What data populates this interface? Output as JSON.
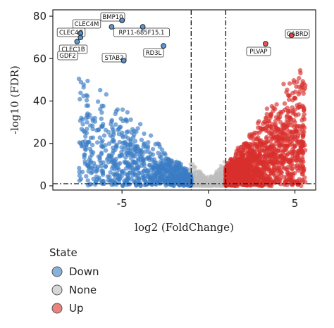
{
  "chart_data": {
    "type": "scatter",
    "title": "",
    "xlabel": "log2 (FoldChange)",
    "ylabel": "-log10 (FDR)",
    "xlim": [
      -9,
      6.2
    ],
    "ylim": [
      -2,
      83
    ],
    "x_ticks": [
      -5,
      0,
      5
    ],
    "y_ticks": [
      0,
      20,
      40,
      60,
      80
    ],
    "thresholds": {
      "x": [
        -1,
        1
      ],
      "y": 1
    },
    "grid": false,
    "legend": {
      "title": "State",
      "position": "bottom-left",
      "entries": [
        {
          "name": "Down",
          "color": "#3b7dc4"
        },
        {
          "name": "None",
          "color": "#bdbdbd"
        },
        {
          "name": "Up",
          "color": "#d9302c"
        }
      ]
    },
    "labeled_points": [
      {
        "label": "BMP10",
        "x": -5.0,
        "y": 78,
        "state": "Down"
      },
      {
        "label": "CLEC4M",
        "x": -5.6,
        "y": 75,
        "state": "Down"
      },
      {
        "label": "CLEC4G",
        "x": -7.4,
        "y": 72,
        "state": "Down"
      },
      {
        "label": "RP11-685F15.1",
        "x": -3.8,
        "y": 75,
        "state": "Down"
      },
      {
        "label": "CLEC1B",
        "x": -7.4,
        "y": 70,
        "state": "Down"
      },
      {
        "label": "GDF2",
        "x": -7.6,
        "y": 68,
        "state": "Down"
      },
      {
        "label": "RD3L",
        "x": -2.6,
        "y": 66,
        "state": "Down"
      },
      {
        "label": "STAB2",
        "x": -4.9,
        "y": 59,
        "state": "Down"
      },
      {
        "label": "GABRD",
        "x": 4.8,
        "y": 71,
        "state": "Up"
      },
      {
        "label": "PLVAP",
        "x": 3.3,
        "y": 67,
        "state": "Up"
      }
    ]
  }
}
